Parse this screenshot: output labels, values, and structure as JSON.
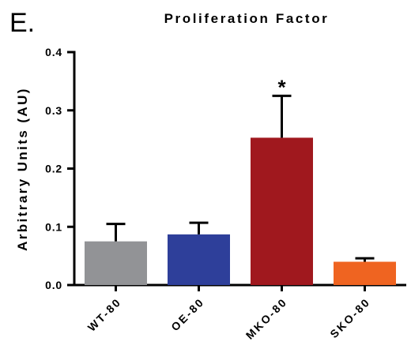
{
  "figure": {
    "panel_label": "E."
  },
  "chart_data": {
    "type": "bar",
    "title": "Proliferation Factor",
    "ylabel": "Arbitrary Units (AU)",
    "xlabel": "",
    "ylim": [
      0,
      0.4
    ],
    "yticks": [
      "0.0",
      "0.1",
      "0.2",
      "0.3",
      "0.4"
    ],
    "ytick_values": [
      0,
      0.1,
      0.2,
      0.3,
      0.4
    ],
    "categories": [
      "WT-80",
      "OE-80",
      "MKO-80",
      "SKO-80"
    ],
    "values": [
      0.075,
      0.087,
      0.253,
      0.04
    ],
    "errors": [
      0.03,
      0.02,
      0.072,
      0.006
    ],
    "colors": [
      "#929396",
      "#2e3f9a",
      "#a0181e",
      "#ef6421"
    ],
    "annotations": [
      "",
      "",
      "*",
      ""
    ],
    "grid": false
  }
}
